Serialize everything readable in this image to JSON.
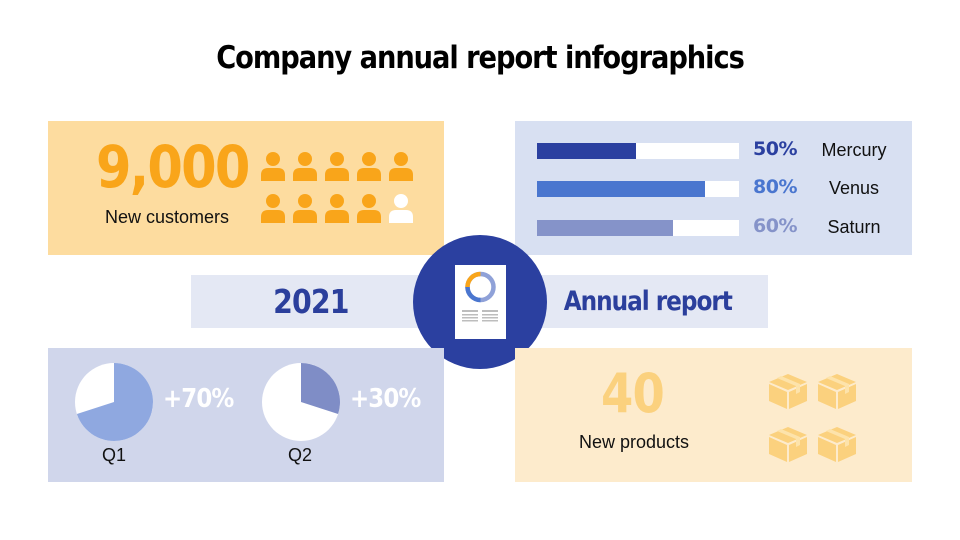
{
  "title": "Company annual report infographics",
  "colors": {
    "navy": "#2b40a0",
    "blue": "#4a76cf",
    "periwinkle": "#8593c9",
    "orange": "#f9a51a",
    "light_orange": "#fbd17e",
    "pie_q1": "#8fa8e0",
    "pie_q2": "#7f8dc6"
  },
  "customers": {
    "value": "9,000",
    "label": "New customers",
    "icons": {
      "name": "person-icon",
      "total": 10,
      "filled": 9
    }
  },
  "center": {
    "year": "2021",
    "label": "Annual report",
    "icon": "report-document-icon"
  },
  "products": {
    "value": "40",
    "label": "New products",
    "icons": {
      "name": "box-icon",
      "count": 4
    }
  },
  "chart_data": [
    {
      "type": "bar",
      "orientation": "horizontal",
      "categories": [
        "Mercury",
        "Venus",
        "Saturn"
      ],
      "values": [
        50,
        80,
        60
      ],
      "labels": [
        "50%",
        "80%",
        "60%"
      ],
      "colors": [
        "#2b40a0",
        "#4a76cf",
        "#8593c9"
      ],
      "xlim": [
        0,
        100
      ]
    },
    {
      "type": "pie",
      "title": "Q1",
      "label": "+70%",
      "values": [
        70,
        30
      ],
      "colors": [
        "#8fa8e0",
        "#ffffff"
      ]
    },
    {
      "type": "pie",
      "title": "Q2",
      "label": "+30%",
      "values": [
        30,
        70
      ],
      "colors": [
        "#7f8dc6",
        "#ffffff"
      ]
    }
  ]
}
